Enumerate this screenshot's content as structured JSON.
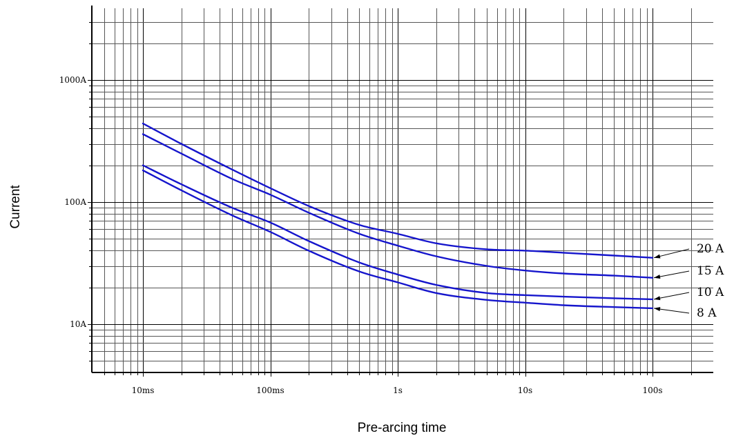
{
  "chart_data": {
    "type": "line",
    "xlabel": "Pre-arcing time",
    "ylabel": "Current",
    "x_scale": "log",
    "y_scale": "log",
    "x_unit": "s",
    "y_unit": "A",
    "xlim": [
      0.0045,
      300
    ],
    "ylim": [
      4,
      4500
    ],
    "x_ticks": [
      {
        "value": 0.01,
        "label": "10ms"
      },
      {
        "value": 0.1,
        "label": "100ms"
      },
      {
        "value": 1,
        "label": "1s"
      },
      {
        "value": 10,
        "label": "10s"
      },
      {
        "value": 100,
        "label": "100s"
      }
    ],
    "y_ticks": [
      {
        "value": 10,
        "label": "10A"
      },
      {
        "value": 100,
        "label": "100A"
      },
      {
        "value": 1000,
        "label": "1000A"
      }
    ],
    "grid": true,
    "curve_color": "#1515cc",
    "series": [
      {
        "name": "20 A",
        "points": [
          [
            0.01,
            440
          ],
          [
            0.02,
            300
          ],
          [
            0.05,
            185
          ],
          [
            0.1,
            130
          ],
          [
            0.2,
            93
          ],
          [
            0.5,
            65
          ],
          [
            1,
            55
          ],
          [
            2,
            46
          ],
          [
            5,
            41
          ],
          [
            10,
            40
          ],
          [
            20,
            38.5
          ],
          [
            50,
            36.5
          ],
          [
            100,
            35
          ]
        ]
      },
      {
        "name": "15 A",
        "points": [
          [
            0.01,
            360
          ],
          [
            0.02,
            250
          ],
          [
            0.05,
            155
          ],
          [
            0.1,
            115
          ],
          [
            0.2,
            82
          ],
          [
            0.5,
            55
          ],
          [
            1,
            44
          ],
          [
            2,
            36
          ],
          [
            5,
            30
          ],
          [
            10,
            27.5
          ],
          [
            20,
            26
          ],
          [
            50,
            25
          ],
          [
            100,
            24
          ]
        ]
      },
      {
        "name": "10 A",
        "points": [
          [
            0.01,
            200
          ],
          [
            0.02,
            140
          ],
          [
            0.05,
            90
          ],
          [
            0.1,
            68
          ],
          [
            0.2,
            48
          ],
          [
            0.5,
            32
          ],
          [
            1,
            25.5
          ],
          [
            2,
            21
          ],
          [
            5,
            18
          ],
          [
            10,
            17.3
          ],
          [
            20,
            16.8
          ],
          [
            50,
            16.3
          ],
          [
            100,
            16
          ]
        ]
      },
      {
        "name": "8 A",
        "points": [
          [
            0.01,
            182
          ],
          [
            0.02,
            125
          ],
          [
            0.05,
            78
          ],
          [
            0.1,
            57
          ],
          [
            0.2,
            40
          ],
          [
            0.5,
            27
          ],
          [
            1,
            22
          ],
          [
            2,
            18
          ],
          [
            5,
            15.8
          ],
          [
            10,
            15
          ],
          [
            20,
            14.3
          ],
          [
            50,
            13.8
          ],
          [
            100,
            13.5
          ]
        ]
      }
    ]
  }
}
